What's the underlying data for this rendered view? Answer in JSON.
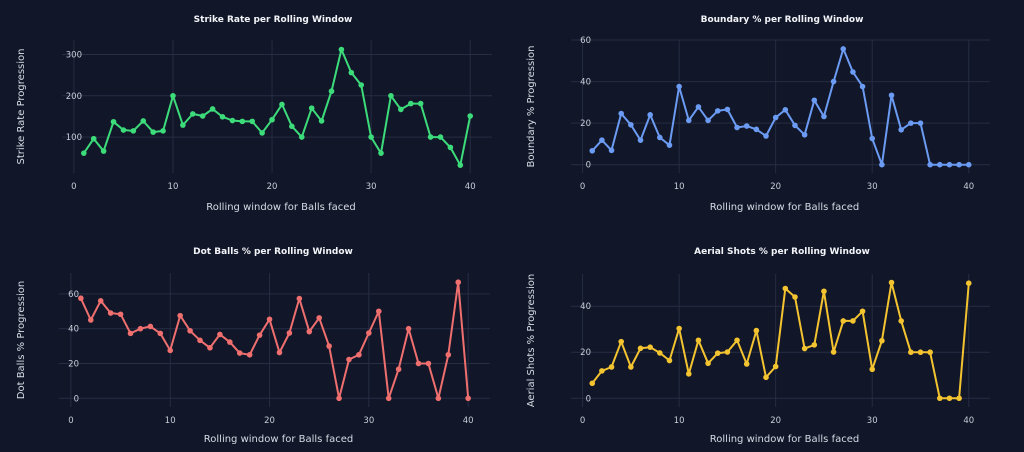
{
  "chart_data": [
    {
      "type": "line",
      "title": "Strike Rate per Rolling Window",
      "xlabel": "Rolling window for Balls faced",
      "ylabel": "Strike Rate Progression",
      "color": "#3ddc7a",
      "x": [
        1,
        2,
        3,
        4,
        5,
        6,
        7,
        8,
        9,
        10,
        11,
        12,
        13,
        14,
        15,
        16,
        17,
        18,
        19,
        20,
        21,
        22,
        23,
        24,
        25,
        26,
        27,
        28,
        29,
        30,
        31,
        32,
        33,
        34,
        35,
        36,
        37,
        38,
        39,
        40
      ],
      "y": [
        61,
        96,
        66,
        137,
        117,
        115,
        139,
        112,
        115,
        200,
        129,
        156,
        151,
        168,
        149,
        140,
        138,
        138,
        110,
        142,
        179,
        126,
        100,
        170,
        139,
        211,
        312,
        256,
        226,
        100,
        61,
        200,
        167,
        181,
        181,
        100,
        100,
        75,
        32,
        151
      ],
      "xlim": [
        -1.2,
        42.2
      ],
      "ylim": [
        13,
        335
      ],
      "xticks": [
        0,
        10,
        20,
        30,
        40
      ],
      "yticks": [
        100,
        200,
        300
      ],
      "grid": true
    },
    {
      "type": "line",
      "title": "Boundary % per Rolling Window",
      "xlabel": "Rolling window for Balls faced",
      "ylabel": "Boundary % Progression",
      "color": "#6b9bf2",
      "x": [
        1,
        2,
        3,
        4,
        5,
        6,
        7,
        8,
        9,
        10,
        11,
        12,
        13,
        14,
        15,
        16,
        17,
        18,
        19,
        20,
        21,
        22,
        23,
        24,
        25,
        26,
        27,
        28,
        29,
        30,
        31,
        32,
        33,
        34,
        35,
        36,
        37,
        38,
        39,
        40
      ],
      "y": [
        6.7,
        11.8,
        6.9,
        24.6,
        19.2,
        11.8,
        24,
        13.1,
        9.4,
        37.6,
        21.3,
        27.8,
        21.3,
        25.9,
        26.6,
        17.9,
        18.6,
        17,
        13.8,
        22.7,
        26.4,
        18.9,
        14.4,
        31,
        23.2,
        40,
        55.7,
        44.6,
        37.6,
        12.6,
        0,
        33.4,
        16.8,
        20,
        20,
        0,
        0,
        0,
        0,
        0
      ],
      "xlim": [
        -1.2,
        42.2
      ],
      "ylim": [
        -4,
        60
      ],
      "xticks": [
        0,
        10,
        20,
        30,
        40
      ],
      "yticks": [
        0,
        20,
        40,
        60
      ],
      "grid": true
    },
    {
      "type": "line",
      "title": "Dot Balls % per Rolling Window",
      "xlabel": "Rolling window for Balls faced",
      "ylabel": "Dot Balls % Progression",
      "color": "#ef6f6f",
      "x": [
        1,
        2,
        3,
        4,
        5,
        6,
        7,
        8,
        9,
        10,
        11,
        12,
        13,
        14,
        15,
        16,
        17,
        18,
        19,
        20,
        21,
        22,
        23,
        24,
        25,
        26,
        27,
        28,
        29,
        30,
        31,
        32,
        33,
        34,
        35,
        36,
        37,
        38,
        39,
        40
      ],
      "y": [
        57.5,
        45,
        56,
        49,
        48.3,
        37.3,
        40,
        41.3,
        37.3,
        27.5,
        47.5,
        38.8,
        33.3,
        29,
        36.7,
        32.3,
        26,
        25,
        36.3,
        45.4,
        26.3,
        37.5,
        57.3,
        38.3,
        46.2,
        30,
        0,
        22.3,
        25,
        37.5,
        50,
        0,
        16.7,
        40,
        20,
        20,
        0,
        25,
        66.7,
        0
      ],
      "xlim": [
        -1.2,
        42.2
      ],
      "ylim": [
        -5,
        72
      ],
      "xticks": [
        0,
        10,
        20,
        30,
        40
      ],
      "yticks": [
        0,
        20,
        40,
        60
      ],
      "grid": true
    },
    {
      "type": "line",
      "title": "Aerial Shots % per Rolling Window",
      "xlabel": "Rolling window for Balls faced",
      "ylabel": "Aerial Shots % Progression",
      "color": "#f4c430",
      "x": [
        1,
        2,
        3,
        4,
        5,
        6,
        7,
        8,
        9,
        10,
        11,
        12,
        13,
        14,
        15,
        16,
        17,
        18,
        19,
        20,
        21,
        22,
        23,
        24,
        25,
        26,
        27,
        28,
        29,
        30,
        31,
        32,
        33,
        34,
        35,
        36,
        37,
        38,
        39,
        40
      ],
      "y": [
        6.5,
        11.9,
        13.6,
        24.6,
        13.6,
        21.7,
        22.2,
        19.7,
        16.4,
        30.3,
        10.6,
        25.2,
        15.2,
        19.6,
        20.1,
        25.2,
        14.9,
        29.4,
        9.1,
        13.8,
        47.7,
        44,
        21.6,
        23.2,
        46.5,
        20.1,
        33.6,
        33.6,
        37.8,
        12.6,
        25,
        50.3,
        33.6,
        20,
        20,
        20,
        0,
        0,
        0,
        50
      ],
      "xlim": [
        -1.2,
        42.2
      ],
      "ylim": [
        -3.8,
        54
      ],
      "xticks": [
        0,
        10,
        20,
        30,
        40
      ],
      "yticks": [
        0,
        20,
        40
      ],
      "grid": true
    }
  ]
}
